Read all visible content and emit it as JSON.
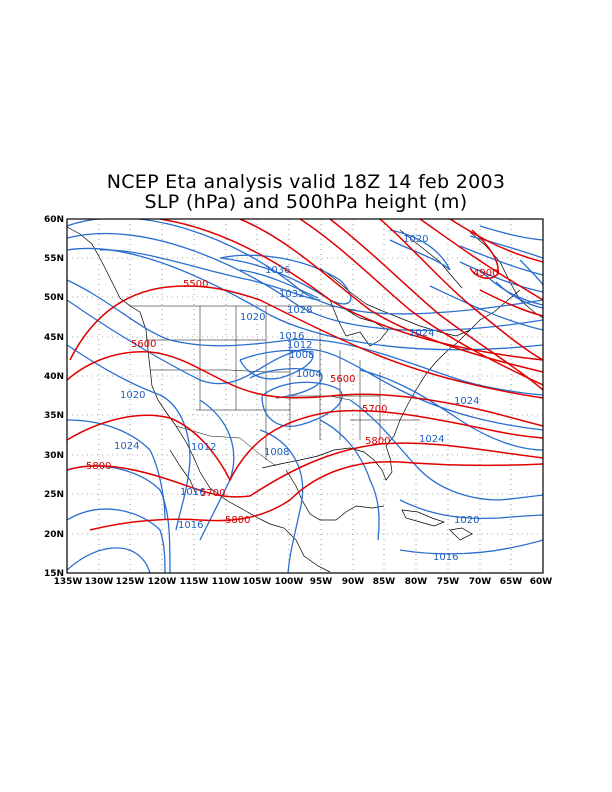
{
  "title": {
    "line1": "NCEP Eta analysis valid 18Z 14 feb 2003",
    "line2": "SLP (hPa) and 500hPa height (m)"
  },
  "axes": {
    "lat_labels": [
      "60N",
      "55N",
      "50N",
      "45N",
      "40N",
      "35N",
      "30N",
      "25N",
      "20N",
      "15N"
    ],
    "lon_labels": [
      "135W",
      "130W",
      "125W",
      "120W",
      "115W",
      "110W",
      "105W",
      "100W",
      "95W",
      "90W",
      "85W",
      "80W",
      "75W",
      "70W",
      "65W",
      "60W"
    ]
  },
  "slp_labels": {
    "l1020_ne": "1020",
    "l1036": "1036",
    "l1032": "1032",
    "l1028": "1028",
    "l1020_w": "1020",
    "l1016_c": "1016",
    "l1012_c": "1012",
    "l1008": "1008",
    "l1004": "1004",
    "l1024_ne": "1024",
    "l1020_pac": "1020",
    "l1024_atl": "1024",
    "l1024_pac": "1024",
    "l1012_mx": "1012",
    "l1008_gulf": "1008",
    "l1024_se": "1024",
    "l1016_baja": "1016",
    "l1016_sw": "1016",
    "l1020_car": "1020",
    "l1016_car": "1016"
  },
  "height_labels": {
    "h4900": "4900",
    "h5500": "5500",
    "h5600_w": "5600",
    "h5600_c": "5600",
    "h5700_e": "5700",
    "h5800_e": "5800",
    "h5800_w": "5800",
    "h5700_w": "5700",
    "h5800_s": "5800"
  },
  "colors": {
    "slp_contour": "#2a6fcf",
    "height_contour": "#e00000",
    "coastline": "#000000"
  }
}
